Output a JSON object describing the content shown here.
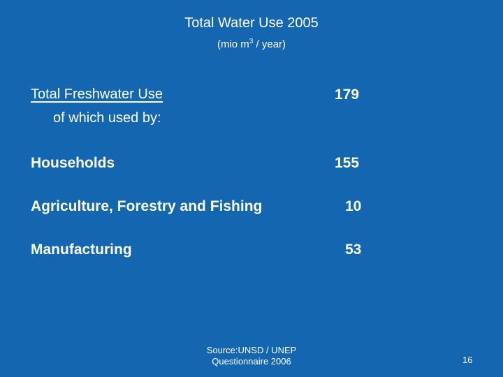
{
  "slide": {
    "title": "Total Water Use 2005",
    "subtitle_prefix": "(mio m",
    "subtitle_sup": "3",
    "subtitle_suffix": " / year)"
  },
  "table": {
    "total": {
      "label": "Total Freshwater Use ",
      "sublabel": "of which used by:",
      "value": "179"
    },
    "rows": [
      {
        "label": "Households",
        "value": "155"
      },
      {
        "label": "Agriculture, Forestry and Fishing",
        "value": "10"
      },
      {
        "label": "Manufacturing",
        "value": "53"
      }
    ]
  },
  "footer": {
    "source_line1": "Source:UNSD / UNEP",
    "source_line2": "Questionnaire 2006",
    "page_number": "16"
  },
  "colors": {
    "background": "#1466b0",
    "text": "#ffffff"
  }
}
